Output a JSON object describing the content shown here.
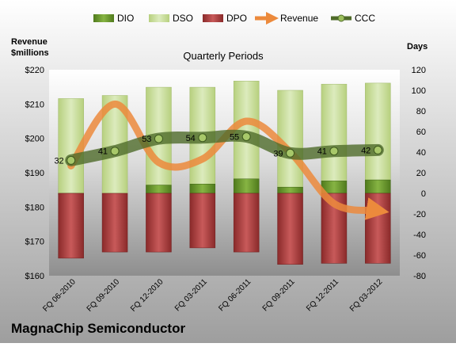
{
  "chart_data": {
    "type": "bar",
    "title": "Quarterly Periods",
    "company": "MagnaChip Semiconductor",
    "left_axis_label_line1": "Revenue",
    "left_axis_label_line2": "$millions",
    "right_axis_label": "Days",
    "categories": [
      "FQ 06-2010",
      "FQ 09-2010",
      "FQ 12-2010",
      "FQ 03-2011",
      "FQ 06-2011",
      "FQ 09-2011",
      "FQ 12-2011",
      "FQ 03-2012"
    ],
    "left_axis": {
      "min": 160,
      "max": 220,
      "step": 10,
      "tick_labels": [
        "$160",
        "$170",
        "$180",
        "$190",
        "$200",
        "$210",
        "$220"
      ]
    },
    "right_axis": {
      "min": -80,
      "max": 120,
      "step": 20,
      "tick_labels": [
        "-80",
        "-60",
        "-40",
        "-20",
        "0",
        "20",
        "40",
        "60",
        "80",
        "100",
        "120"
      ]
    },
    "series": [
      {
        "name": "DIO",
        "type": "stacked-bar-positive",
        "axis": "right",
        "values": [
          -1,
          0,
          8,
          9,
          14,
          6,
          12,
          13
        ]
      },
      {
        "name": "DSO",
        "type": "stacked-bar-positive",
        "axis": "right",
        "values": [
          93,
          95,
          95,
          94,
          95,
          94,
          94,
          94
        ]
      },
      {
        "name": "DPO",
        "type": "bar-negative",
        "axis": "right",
        "values": [
          -63,
          -57,
          -57,
          -53,
          -57,
          -69,
          -68,
          -68
        ]
      },
      {
        "name": "Revenue",
        "type": "line",
        "axis": "left",
        "values": [
          192,
          210,
          193,
          194,
          205,
          196,
          181,
          179
        ]
      },
      {
        "name": "CCC",
        "type": "line",
        "axis": "right",
        "values": [
          32,
          41,
          53,
          54,
          55,
          39,
          41,
          42
        ]
      }
    ],
    "ccc_data_labels": [
      "32",
      "41",
      "53",
      "54",
      "55",
      "39",
      "41",
      "42"
    ],
    "legend": {
      "placement": "top",
      "items": [
        "DIO",
        "DSO",
        "DPO",
        "Revenue",
        "CCC"
      ]
    },
    "grid": false
  },
  "colors": {
    "dio": "#6a9a2a",
    "dso": "#c6dc94",
    "dpo": "#a83b3b",
    "revenue": "#ec8a3c",
    "ccc": "#4f6b2a",
    "text": "#000000",
    "company": "#000000"
  }
}
